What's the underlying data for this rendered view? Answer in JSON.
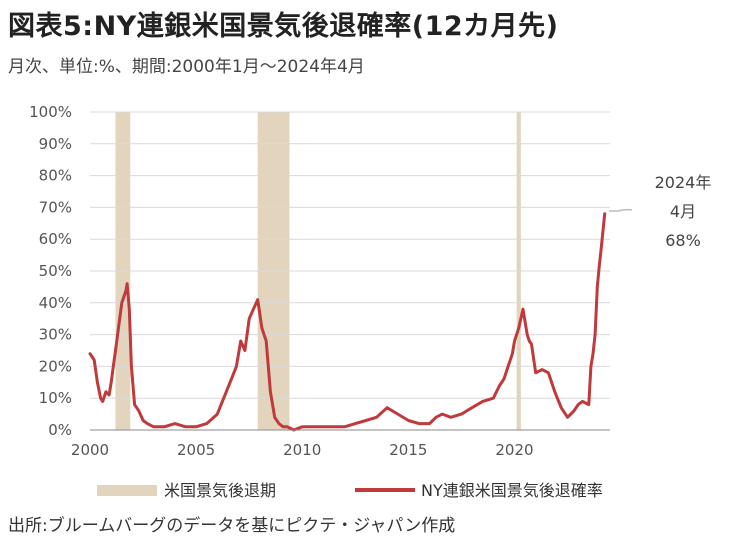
{
  "title": "図表5:NY連銀米国景気後退確率(12カ月先)",
  "subtitle": "月次、単位:%、期間:2000年1月〜2024年4月",
  "source": "出所:ブルームバーグのデータを基にピクテ・ジャパン作成",
  "colors": {
    "line": "#c0393b",
    "recession": "#e3d5bd",
    "grid": "#d9d9d9",
    "axis": "#888888"
  },
  "chart_data": {
    "type": "line",
    "xlim": [
      2000.0,
      2024.5
    ],
    "ylim": [
      0,
      100
    ],
    "yticks": [
      0,
      10,
      20,
      30,
      40,
      50,
      60,
      70,
      80,
      90,
      100
    ],
    "ytick_labels": [
      "0%",
      "10%",
      "20%",
      "30%",
      "40%",
      "50%",
      "60%",
      "70%",
      "80%",
      "90%",
      "100%"
    ],
    "xticks": [
      2000,
      2005,
      2010,
      2015,
      2020
    ],
    "xtick_labels": [
      "2000",
      "2005",
      "2010",
      "2015",
      "2020"
    ],
    "grid": true,
    "legend_position": "bottom",
    "recession_periods": [
      {
        "start": 2001.2,
        "end": 2001.9
      },
      {
        "start": 2007.9,
        "end": 2009.4
      },
      {
        "start": 2020.1,
        "end": 2020.3
      }
    ],
    "series": [
      {
        "name": "NY連銀米国景気後退確率",
        "x": [
          2000.0,
          2000.2,
          2000.35,
          2000.5,
          2000.6,
          2000.75,
          2000.9,
          2001.0,
          2001.1,
          2001.2,
          2001.3,
          2001.4,
          2001.5,
          2001.6,
          2001.7,
          2001.75,
          2001.85,
          2001.95,
          2002.1,
          2002.3,
          2002.5,
          2002.7,
          2003.0,
          2003.5,
          2004.0,
          2004.5,
          2005.0,
          2005.5,
          2006.0,
          2006.3,
          2006.6,
          2006.9,
          2007.1,
          2007.3,
          2007.5,
          2007.7,
          2007.9,
          2008.1,
          2008.3,
          2008.5,
          2008.7,
          2008.9,
          2009.1,
          2009.3,
          2009.6,
          2010.0,
          2011.0,
          2012.0,
          2012.5,
          2013.0,
          2013.5,
          2014.0,
          2014.5,
          2015.0,
          2015.5,
          2016.0,
          2016.3,
          2016.6,
          2017.0,
          2017.5,
          2018.0,
          2018.5,
          2019.0,
          2019.3,
          2019.5,
          2019.7,
          2019.9,
          2020.0,
          2020.2,
          2020.4,
          2020.6,
          2020.7,
          2020.8,
          2021.0,
          2021.3,
          2021.6,
          2021.9,
          2022.2,
          2022.5,
          2022.8,
          2023.0,
          2023.2,
          2023.5,
          2023.6,
          2023.7,
          2023.8,
          2023.9,
          2024.0,
          2024.1,
          2024.25
        ],
        "y": [
          24,
          22,
          15,
          10,
          9,
          12,
          11,
          15,
          20,
          25,
          30,
          35,
          40,
          42,
          44,
          46,
          38,
          20,
          8,
          6,
          3,
          2,
          1,
          1,
          2,
          1,
          1,
          2,
          5,
          10,
          15,
          20,
          28,
          25,
          35,
          38,
          41,
          32,
          28,
          12,
          4,
          2,
          1,
          1,
          0,
          1,
          1,
          1,
          2,
          3,
          4,
          7,
          5,
          3,
          2,
          2,
          4,
          5,
          4,
          5,
          7,
          9,
          10,
          14,
          16,
          20,
          24,
          28,
          32,
          38,
          30,
          28,
          27,
          18,
          19,
          18,
          12,
          7,
          4,
          6,
          8,
          9,
          8,
          20,
          24,
          30,
          45,
          52,
          58,
          68
        ]
      }
    ],
    "annotation": {
      "line1": "2024年",
      "line2": "4月",
      "line3": "68%"
    },
    "legend": {
      "recession_label": "米国景気後退期",
      "line_label": "NY連銀米国景気後退確率"
    }
  }
}
